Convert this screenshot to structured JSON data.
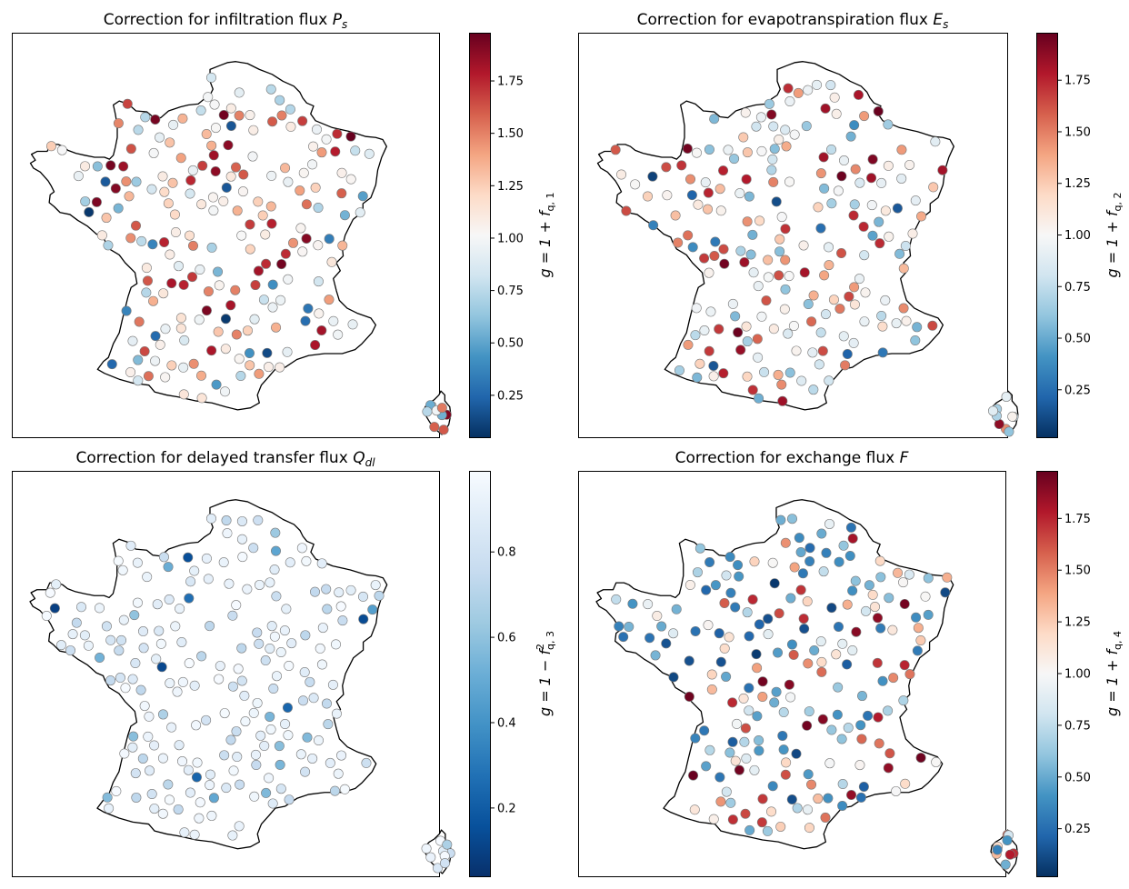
{
  "panels": [
    {
      "title_text": "Correction for infiltration flux ",
      "title_math": "P",
      "title_sub": "s",
      "colormap": "RdBu_r",
      "colorbar": {
        "label_pre": "g = 1 + f",
        "label_sub": "q, 1",
        "label_sup": "",
        "range": [
          0.05,
          1.98
        ],
        "ticks": [
          "0.25",
          "0.50",
          "0.75",
          "1.00",
          "1.25",
          "1.50",
          "1.75"
        ]
      }
    },
    {
      "title_text": "Correction for evapotranspiration flux ",
      "title_math": "E",
      "title_sub": "s",
      "colormap": "RdBu_r",
      "colorbar": {
        "label_pre": "g = 1 + f",
        "label_sub": "q, 2",
        "label_sup": "",
        "range": [
          0.02,
          1.98
        ],
        "ticks": [
          "0.25",
          "0.50",
          "0.75",
          "1.00",
          "1.25",
          "1.50",
          "1.75"
        ]
      }
    },
    {
      "title_text": "Correction for delayed transfer flux ",
      "title_math": "Q",
      "title_sub": "dl",
      "colormap": "Blues_r",
      "colorbar": {
        "label_pre": "g = 1 − f",
        "label_sub": "q, 3",
        "label_sup": "2",
        "range": [
          0.04,
          0.99
        ],
        "ticks": [
          "0.2",
          "0.4",
          "0.6",
          "0.8"
        ]
      }
    },
    {
      "title_text": "Correction for exchange flux ",
      "title_math": "F",
      "title_sub": "",
      "colormap": "RdBu_r",
      "colorbar": {
        "label_pre": "g = 1 + f",
        "label_sub": "q, 4",
        "label_sup": "",
        "range": [
          0.02,
          1.98
        ],
        "ticks": [
          "0.25",
          "0.50",
          "0.75",
          "1.00",
          "1.25",
          "1.50",
          "1.75"
        ]
      }
    }
  ]
}
